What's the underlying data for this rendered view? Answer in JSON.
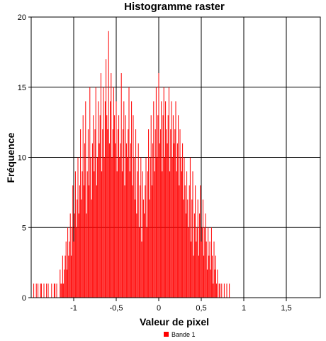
{
  "chart_data": {
    "type": "bar",
    "title": "Histogramme raster",
    "xlabel": "Valeur de pixel",
    "ylabel": "Fréquence",
    "xlim": [
      -1.5,
      1.9
    ],
    "ylim": [
      0,
      20
    ],
    "x_ticks": [
      {
        "value": -1,
        "label": "-1"
      },
      {
        "value": -0.5,
        "label": "-0,5"
      },
      {
        "value": 0,
        "label": "0"
      },
      {
        "value": 0.5,
        "label": "0,5"
      },
      {
        "value": 1,
        "label": "1"
      },
      {
        "value": 1.5,
        "label": "1,5"
      }
    ],
    "y_ticks": [
      {
        "value": 0,
        "label": "0"
      },
      {
        "value": 5,
        "label": "5"
      },
      {
        "value": 10,
        "label": "10"
      },
      {
        "value": 15,
        "label": "15"
      },
      {
        "value": 20,
        "label": "20"
      }
    ],
    "grid": true,
    "legend_position": "bottom-center",
    "series": [
      {
        "name": "Bande 1",
        "color": "#ff0000",
        "bin_start": -1.48,
        "bin_width": 0.01,
        "values": [
          0,
          1,
          0,
          0,
          1,
          0,
          1,
          0,
          0,
          1,
          1,
          0,
          0,
          1,
          0,
          0,
          1,
          0,
          1,
          0,
          0,
          0,
          1,
          0,
          0,
          1,
          1,
          0,
          1,
          0,
          0,
          0,
          2,
          1,
          1,
          3,
          1,
          2,
          3,
          4,
          2,
          5,
          3,
          4,
          6,
          3,
          5,
          8,
          4,
          6,
          9,
          5,
          7,
          10,
          6,
          8,
          12,
          7,
          9,
          13,
          8,
          11,
          14,
          6,
          9,
          12,
          8,
          15,
          10,
          7,
          11,
          13,
          9,
          12,
          15,
          8,
          10,
          14,
          11,
          13,
          16,
          9,
          12,
          15,
          10,
          14,
          17,
          13,
          12,
          19,
          11,
          14,
          16,
          10,
          12,
          15,
          13,
          11,
          14,
          9,
          12,
          13,
          10,
          11,
          16,
          9,
          12,
          14,
          8,
          13,
          11,
          10,
          12,
          15,
          9,
          11,
          14,
          8,
          13,
          10,
          7,
          12,
          6,
          9,
          11,
          5,
          8,
          10,
          4,
          9,
          7,
          6,
          8,
          10,
          5,
          9,
          12,
          7,
          10,
          13,
          8,
          11,
          14,
          9,
          12,
          15,
          10,
          13,
          16,
          11,
          12,
          14,
          9,
          13,
          15,
          10,
          14,
          12,
          11,
          13,
          15,
          9,
          12,
          14,
          10,
          13,
          11,
          12,
          14,
          9,
          11,
          13,
          8,
          12,
          10,
          9,
          11,
          7,
          10,
          8,
          6,
          9,
          7,
          5,
          8,
          10,
          4,
          7,
          9,
          3,
          6,
          8,
          4,
          5,
          7,
          3,
          6,
          8,
          4,
          5,
          7,
          3,
          5,
          6,
          4,
          2,
          5,
          3,
          4,
          2,
          5,
          3,
          1,
          4,
          2,
          3,
          1,
          2,
          0,
          1,
          1,
          0,
          1,
          0,
          0,
          1,
          0,
          0,
          1,
          0,
          0,
          1
        ]
      }
    ]
  }
}
